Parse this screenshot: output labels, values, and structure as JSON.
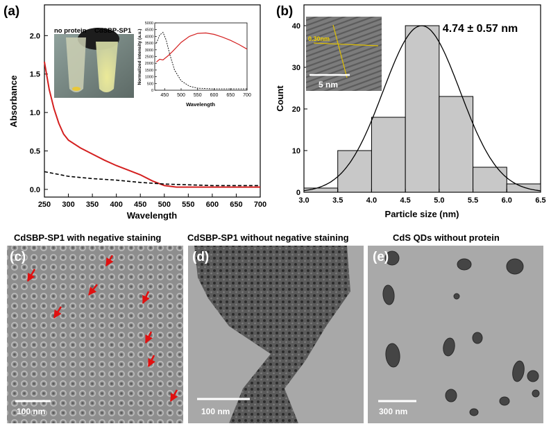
{
  "panel_a": {
    "label": "(a)",
    "photo_labels": [
      "no protein",
      "CdSBP-SP1"
    ],
    "chart_data": {
      "type": "line",
      "title": "",
      "xlabel": "Wavelength",
      "ylabel": "Absorbance",
      "xlim": [
        250,
        700
      ],
      "ylim": [
        -0.1,
        2.4
      ],
      "xticks": [
        250,
        300,
        350,
        400,
        450,
        500,
        550,
        600,
        650,
        700
      ],
      "yticks": [
        0.0,
        0.5,
        1.0,
        1.5,
        2.0
      ],
      "ytick_labels": [
        "0.0",
        "0.5",
        "1.0",
        "1.5",
        "2.0"
      ],
      "series": [
        {
          "color": "#d42020",
          "style": "solid",
          "x": [
            250,
            260,
            270,
            280,
            290,
            300,
            325,
            350,
            375,
            400,
            425,
            450,
            475,
            500,
            525,
            550,
            600,
            650,
            700
          ],
          "y": [
            1.66,
            1.3,
            1.05,
            0.86,
            0.72,
            0.64,
            0.54,
            0.46,
            0.38,
            0.31,
            0.25,
            0.19,
            0.11,
            0.05,
            0.03,
            0.03,
            0.03,
            0.03,
            0.03
          ]
        },
        {
          "color": "#000000",
          "style": "dashed",
          "x": [
            250,
            300,
            350,
            400,
            450,
            500,
            550,
            600,
            650,
            700
          ],
          "y": [
            0.23,
            0.17,
            0.14,
            0.12,
            0.09,
            0.07,
            0.06,
            0.05,
            0.05,
            0.05
          ]
        }
      ]
    },
    "inset_chart": {
      "type": "line",
      "title": "",
      "xlabel": "Wavelength",
      "ylabel": "Normalized intensity (a.u.)",
      "xlim": [
        420,
        700
      ],
      "ylim": [
        0,
        5000
      ],
      "xticks": [
        450,
        500,
        550,
        600,
        650,
        700
      ],
      "yticks": [
        0,
        500,
        1000,
        1500,
        2000,
        2500,
        3000,
        3500,
        4000,
        4500,
        5000
      ],
      "series": [
        {
          "color": "#d42020",
          "style": "solid",
          "x": [
            425,
            435,
            445,
            460,
            475,
            500,
            525,
            550,
            575,
            600,
            625,
            650,
            675,
            700
          ],
          "y": [
            2100,
            2300,
            2250,
            2550,
            2900,
            3550,
            4000,
            4220,
            4250,
            4150,
            3950,
            3700,
            3400,
            3050
          ]
        },
        {
          "color": "#000000",
          "style": "dashed",
          "x": [
            425,
            435,
            445,
            455,
            465,
            480,
            500,
            525,
            550,
            600,
            650,
            700
          ],
          "y": [
            3500,
            4100,
            4300,
            3700,
            2700,
            1500,
            700,
            300,
            150,
            100,
            100,
            100
          ]
        }
      ]
    }
  },
  "panel_b": {
    "label": "(b)",
    "annotation": "4.74 ± 0.57 nm",
    "inset_lattice_label": "0.30nm",
    "inset_scale_label": "5 nm",
    "chart_data": {
      "type": "bar",
      "title": "",
      "xlabel": "Particle size (nm)",
      "ylabel": "Count",
      "xlim": [
        3.0,
        6.5
      ],
      "ylim": [
        0,
        45
      ],
      "xticks": [
        3.0,
        3.5,
        4.0,
        4.5,
        5.0,
        5.5,
        6.0,
        6.5
      ],
      "xtick_labels": [
        "3.0",
        "3.5",
        "4.0",
        "4.5",
        "5.0",
        "5.5",
        "6.0",
        "6.5"
      ],
      "yticks": [
        0,
        10,
        20,
        30,
        40
      ],
      "bins": [
        [
          3.0,
          3.5
        ],
        [
          3.5,
          4.0
        ],
        [
          4.0,
          4.5
        ],
        [
          4.5,
          5.0
        ],
        [
          5.0,
          5.5
        ],
        [
          5.5,
          6.0
        ],
        [
          6.0,
          6.5
        ]
      ],
      "values": [
        1,
        10,
        18,
        40,
        23,
        6,
        2
      ],
      "fit": {
        "type": "gaussian",
        "mean": 4.74,
        "sigma": 0.57,
        "peak": 40
      }
    }
  },
  "panel_c": {
    "label": "(c)",
    "caption": "CdSBP-SP1 with negative staining",
    "scale_label": "100 nm"
  },
  "panel_d": {
    "label": "(d)",
    "caption": "CdSBP-SP1 without negative staining",
    "scale_label": "100 nm"
  },
  "panel_e": {
    "label": "(e)",
    "caption": "CdS QDs without protein",
    "scale_label": "300 nm"
  }
}
